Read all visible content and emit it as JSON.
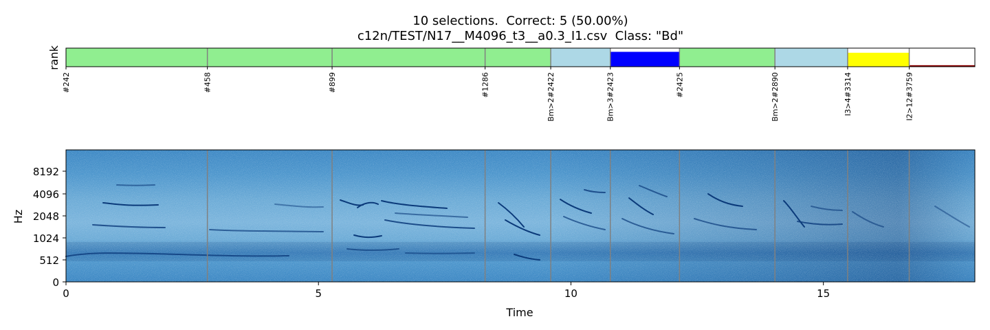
{
  "figure": {
    "title_line1": "10 selections.  Correct: 5 (50.00%)",
    "title_line2": "c12n/TEST/N17__M4096_t3__a0.3_I1.csv  Class: \"Bd\""
  },
  "chart_data": [
    {
      "type": "bar",
      "panel": "rank",
      "ylabel": "rank",
      "x_range": [
        0,
        18
      ],
      "selections": [
        {
          "label": "#242",
          "start": 0.0,
          "end": 2.8,
          "color": "#90ee90",
          "fill": 1.0
        },
        {
          "label": "#458",
          "start": 2.8,
          "end": 5.27,
          "color": "#90ee90",
          "fill": 1.0
        },
        {
          "label": "#899",
          "start": 5.27,
          "end": 8.3,
          "color": "#90ee90",
          "fill": 1.0
        },
        {
          "label": "#1286",
          "start": 8.3,
          "end": 9.6,
          "color": "#90ee90",
          "fill": 1.0
        },
        {
          "label": "Bm>2#2422",
          "start": 9.6,
          "end": 10.78,
          "color": "#add8e6",
          "fill": 1.0
        },
        {
          "label": "Bm>3#2423",
          "start": 10.78,
          "end": 12.15,
          "color": "#0000ff",
          "fill": 0.8
        },
        {
          "label": "#2425",
          "start": 12.15,
          "end": 14.04,
          "color": "#90ee90",
          "fill": 1.0
        },
        {
          "label": "Bm>2#2890",
          "start": 14.04,
          "end": 15.48,
          "color": "#add8e6",
          "fill": 1.0
        },
        {
          "label": "I3>4#3314",
          "start": 15.48,
          "end": 16.7,
          "color": "#ffff00",
          "fill": 0.75
        },
        {
          "label": "I2>12#3759",
          "start": 16.7,
          "end": 18.0,
          "color": "#8b0000",
          "fill": 0.08
        }
      ]
    },
    {
      "type": "heatmap",
      "panel": "spectrogram",
      "xlabel": "Time",
      "ylabel": "Hz",
      "xlim": [
        0,
        18
      ],
      "x_ticks": [
        0,
        5,
        10,
        15
      ],
      "x_tick_labels": [
        "0",
        "5",
        "10",
        "15"
      ],
      "y_scale": "log2-like",
      "y_ticks": [
        "0",
        "512",
        "1024",
        "2048",
        "4096",
        "8192"
      ],
      "colormap": "Blues",
      "selection_boundaries": [
        2.8,
        5.27,
        8.3,
        9.6,
        10.78,
        12.15,
        14.04,
        15.48,
        16.7
      ]
    }
  ]
}
